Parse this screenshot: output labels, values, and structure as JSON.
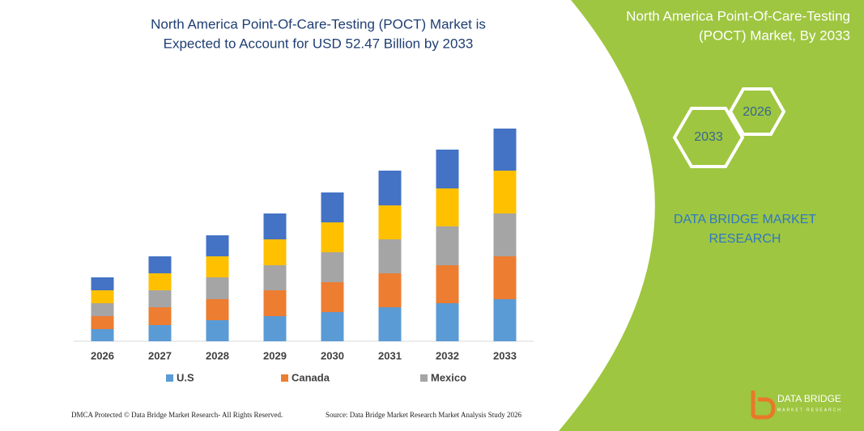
{
  "chart_data": {
    "type": "stacked-bar",
    "title": [
      "North America Point-Of-Care-Testing (POCT) Market is",
      "Expected to Account for USD 52.47 Billion by 2033"
    ],
    "categories": [
      "2026",
      "2027",
      "2028",
      "2029",
      "2030",
      "2031",
      "2032",
      "2033"
    ],
    "series": [
      {
        "name": "U.S",
        "color": "#5b9bd5",
        "values": [
          15,
          20,
          26,
          31,
          36,
          42,
          47,
          52
        ]
      },
      {
        "name": "Canada",
        "color": "#ed7d31",
        "values": [
          16,
          22,
          26,
          32,
          37,
          42,
          47,
          53
        ]
      },
      {
        "name": "Mexico",
        "color": "#a5a5a5",
        "values": [
          16,
          21,
          27,
          31,
          37,
          42,
          48,
          53
        ]
      },
      {
        "color": "#ffc000",
        "values": [
          16,
          21,
          26,
          32,
          37,
          42,
          47,
          53
        ]
      },
      {
        "color": "#4472c4",
        "values": [
          16,
          21,
          26,
          32,
          37,
          43,
          48,
          52
        ]
      }
    ]
  },
  "panel": {
    "title": [
      "North America Point-Of-Care-Testing",
      "(POCT) Market, By 2033"
    ],
    "hexagons": [
      "2033",
      "2026"
    ],
    "brand": [
      "DATA BRIDGE MARKET",
      "RESEARCH"
    ],
    "logo": "DATA BRIDGE",
    "logo_sub": "MARKET RESEARCH"
  },
  "footer": {
    "left": "DMCA Protected © Data Bridge Market Research-  All Rights Reserved.",
    "right": "Source: Data Bridge Market Research  Market Analysis Study 2026"
  }
}
